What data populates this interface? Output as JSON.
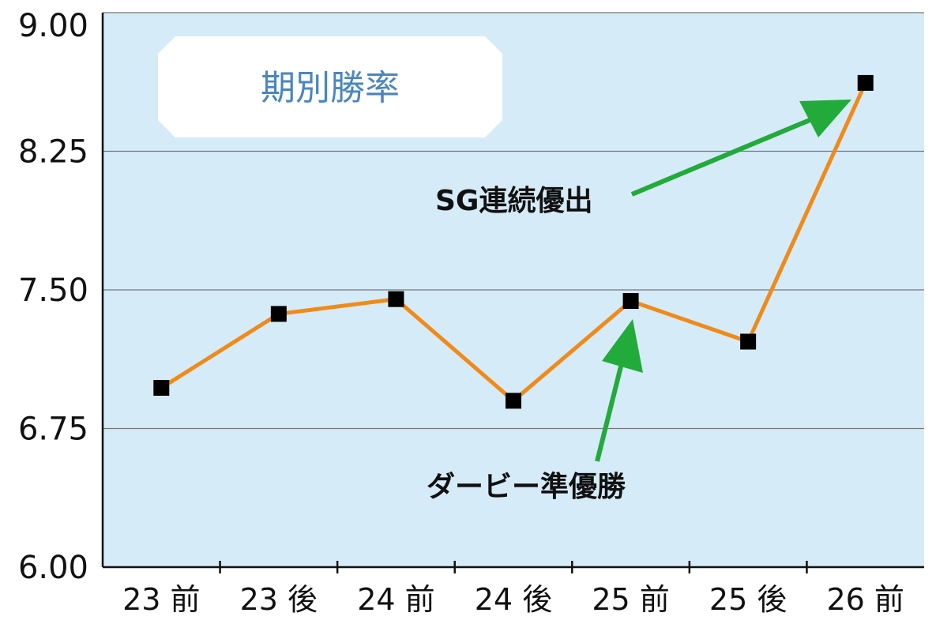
{
  "chart_data": {
    "type": "line",
    "title": "期別勝率",
    "xlabel": "",
    "ylabel": "",
    "categories": [
      "23 前",
      "23 後",
      "24 前",
      "24 後",
      "25 前",
      "25 後",
      "26 前"
    ],
    "series": [
      {
        "values": [
          6.97,
          7.37,
          7.45,
          6.9,
          7.44,
          7.22,
          8.62
        ]
      }
    ],
    "ylim": [
      6.0,
      9.0
    ],
    "yticks": [
      "9.00",
      "8.25",
      "7.50",
      "6.75",
      "6.00"
    ],
    "grid": true,
    "colors": {
      "background": "#d6ebf8",
      "line": "#f08a18",
      "marker": "#000000",
      "arrow": "#22aa3a",
      "grid": "#777777"
    },
    "annotations": [
      {
        "text": "SG連続優出",
        "target_category": "26 前"
      },
      {
        "text": "ダービー準優勝",
        "target_category": "25 前"
      }
    ]
  }
}
